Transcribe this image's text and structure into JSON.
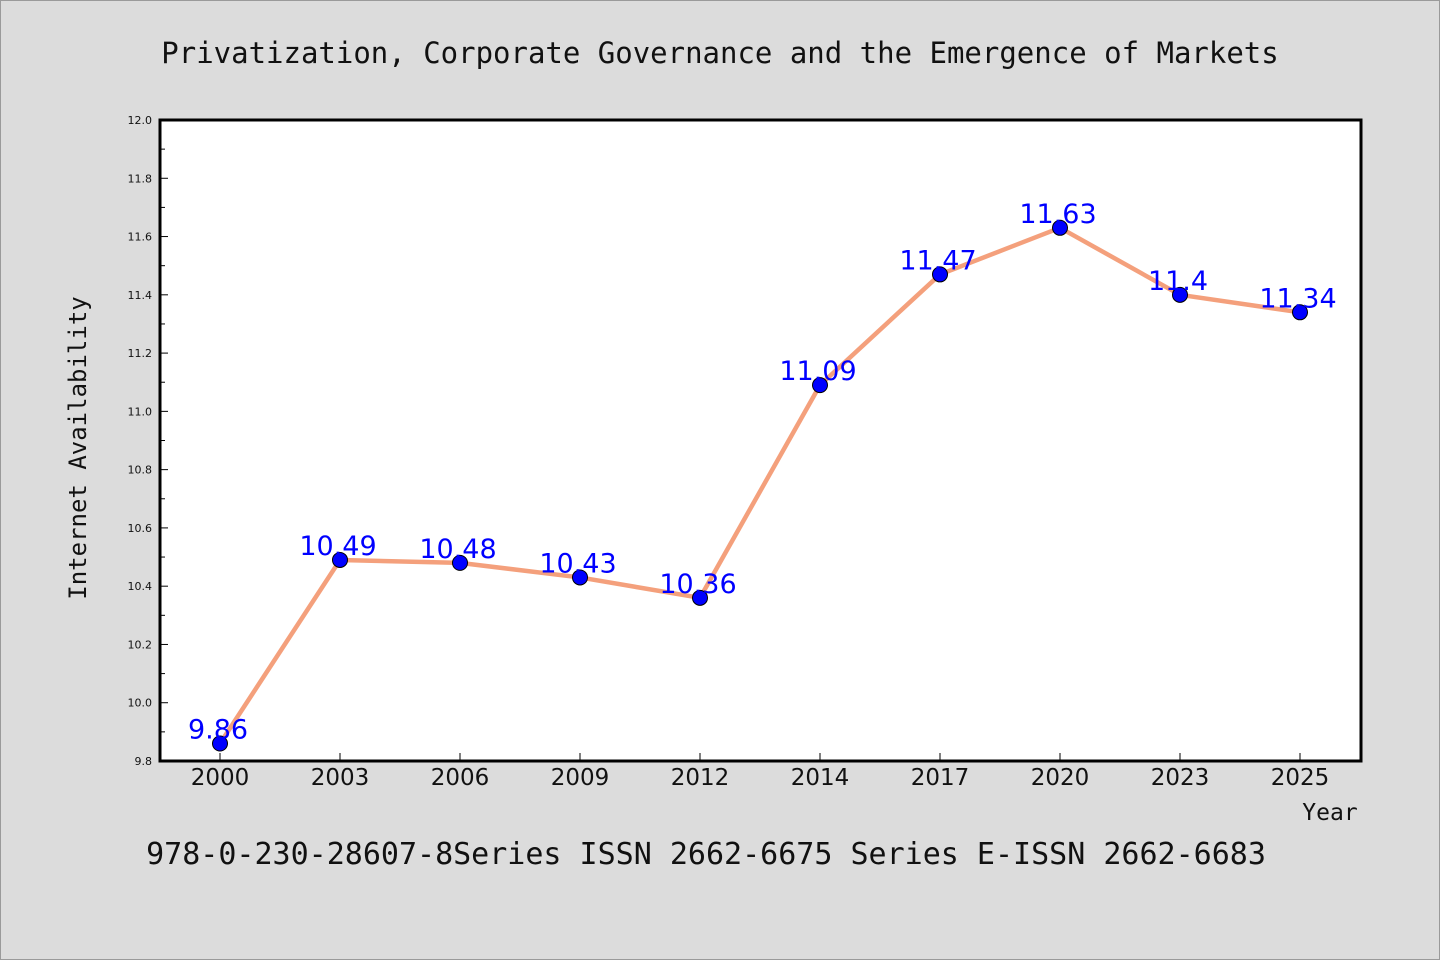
{
  "colors": {
    "background": "#dcdcdc",
    "plot_background": "#ffffff",
    "line": "#f4a07c",
    "marker": "#0000ff",
    "data_label": "#0000ff",
    "axis": "#000000"
  },
  "footer": "978-0-230-28607-8Series ISSN 2662-6675 Series E-ISSN 2662-6683",
  "chart_data": {
    "type": "line",
    "title": "Privatization, Corporate Governance and the Emergence of Markets",
    "xlabel": "Year",
    "ylabel": "Internet Availability",
    "categories": [
      "2000",
      "2003",
      "2006",
      "2009",
      "2012",
      "2014",
      "2017",
      "2020",
      "2023",
      "2025"
    ],
    "series": [
      {
        "values": [
          9.86,
          10.49,
          10.48,
          10.43,
          10.36,
          11.09,
          11.47,
          11.63,
          11.4,
          11.34
        ],
        "labels": [
          "9.86",
          "10.49",
          "10.48",
          "10.43",
          "10.36",
          "11.09",
          "11.47",
          "11.63",
          "11.4",
          "11.34"
        ]
      }
    ],
    "ylim": [
      9.8,
      12.0
    ],
    "yticks": [
      "9.8",
      "10.0",
      "10.2",
      "10.4",
      "10.6",
      "10.8",
      "11.0",
      "11.2",
      "11.4",
      "11.6",
      "11.8",
      "12.0"
    ],
    "grid": false,
    "legend": "none"
  }
}
